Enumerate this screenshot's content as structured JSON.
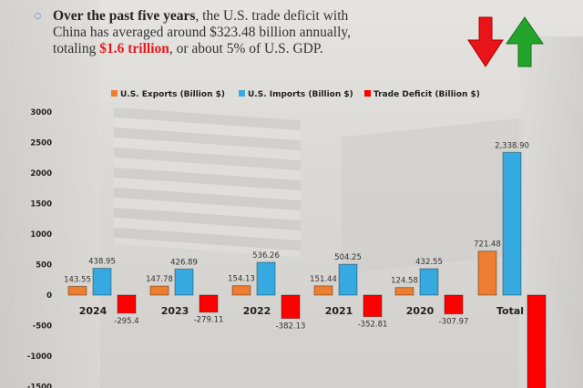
{
  "header": {
    "bold_lead": "Over the past five years",
    "text_1": ", the U.S. trade deficit with China has averaged around $323.48 billion annually, totaling ",
    "highlight": "$1.6 trillion",
    "text_2": ", or about 5% of U.S. GDP.",
    "icons": [
      "arrow-down-red-icon",
      "arrow-up-green-icon"
    ]
  },
  "chart_data": {
    "type": "bar",
    "title": "",
    "categories": [
      "2024",
      "2023",
      "2022",
      "2021",
      "2020",
      "Total"
    ],
    "series": [
      {
        "name": "U.S. Exports (Billion $)",
        "color": "#ed7d31",
        "values": [
          143.55,
          147.78,
          154.13,
          151.44,
          124.58,
          721.48
        ],
        "labels": [
          "143.55",
          "147.78",
          "154.13",
          "151.44",
          "124.58",
          "721.48"
        ]
      },
      {
        "name": "U.S. Imports (Billion $)",
        "color": "#35a9e0",
        "values": [
          438.95,
          426.89,
          536.26,
          504.25,
          432.55,
          2338.9
        ],
        "labels": [
          "438.95",
          "426.89",
          "536.26",
          "504.25",
          "432.55",
          "2,338.90"
        ]
      },
      {
        "name": "Trade Deficit (Billion $)",
        "color": "#ff0000",
        "values": [
          -295.4,
          -279.11,
          -382.13,
          -352.81,
          -307.97,
          -1617.42
        ],
        "labels": [
          "-295.4",
          "-279.11",
          "-382.13",
          "-352.81",
          "-307.97",
          ""
        ]
      }
    ],
    "yticks": [
      "3000",
      "2500",
      "2000",
      "1500",
      "1000",
      "500",
      "0",
      "-500",
      "-1000",
      "-1500"
    ],
    "ylim": [
      -1500,
      3000
    ],
    "legend": "top",
    "grid": false
  }
}
